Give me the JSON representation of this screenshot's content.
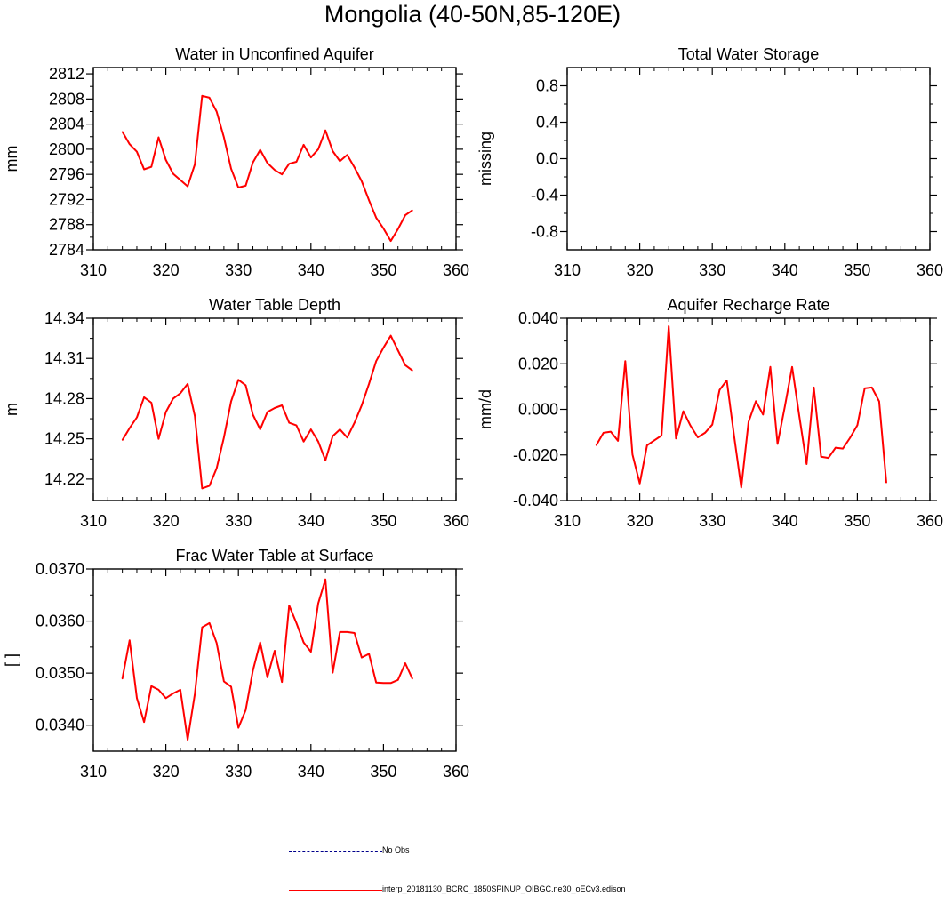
{
  "title": "Mongolia (40-50N,85-120E)",
  "legend": {
    "no_obs_label": "No Obs",
    "model_label": "interp_20181130_BCRC_1850SPINUP_OIBGC.ne30_oECv3.edison",
    "no_obs_color": "#00008b",
    "model_color": "#ff0000"
  },
  "chart_data": [
    {
      "type": "line",
      "title": "Water in Unconfined Aquifer",
      "xlabel": "",
      "ylabel": "mm",
      "xlim": [
        310,
        360
      ],
      "ylim": [
        2784,
        2813
      ],
      "xticks": [
        310,
        320,
        330,
        340,
        350,
        360
      ],
      "yticks": [
        2784,
        2788,
        2792,
        2796,
        2800,
        2804,
        2808,
        2812
      ],
      "ytick_labels": [
        "2784",
        "2788",
        "2792",
        "2796",
        "2800",
        "2804",
        "2808",
        "2812"
      ],
      "series": [
        {
          "name": "interp_20181130_BCRC_1850SPINUP_OIBGC.ne30_oECv3.edison",
          "color": "#ff0000",
          "x": [
            314,
            315,
            316,
            317,
            318,
            319,
            320,
            321,
            322,
            323,
            324,
            325,
            326,
            327,
            328,
            329,
            330,
            331,
            332,
            333,
            334,
            335,
            336,
            337,
            338,
            339,
            340,
            341,
            342,
            343,
            344,
            345,
            346,
            347,
            348,
            349,
            350,
            351,
            352,
            353,
            354
          ],
          "values": [
            2802.8,
            2800.8,
            2799.6,
            2796.8,
            2797.2,
            2801.9,
            2798.3,
            2796.1,
            2795.1,
            2794.1,
            2797.6,
            2808.5,
            2808.2,
            2806.0,
            2801.9,
            2796.9,
            2793.9,
            2794.2,
            2797.9,
            2799.9,
            2797.8,
            2796.7,
            2796.0,
            2797.7,
            2798.0,
            2800.7,
            2798.7,
            2800.0,
            2803.0,
            2799.7,
            2798.1,
            2799.1,
            2797.1,
            2794.9,
            2791.9,
            2789.1,
            2787.4,
            2785.4,
            2787.3,
            2789.5,
            2790.3
          ]
        }
      ]
    },
    {
      "type": "line",
      "title": "Total Water Storage",
      "xlabel": "",
      "ylabel": "missing",
      "xlim": [
        310,
        360
      ],
      "ylim": [
        -1.0,
        1.0
      ],
      "xticks": [
        310,
        320,
        330,
        340,
        350,
        360
      ],
      "yticks": [
        -0.8,
        -0.4,
        0.0,
        0.4,
        0.8
      ],
      "ytick_labels": [
        "-0.8",
        "-0.4",
        "0.0",
        "0.4",
        "0.8"
      ],
      "series": []
    },
    {
      "type": "line",
      "title": "Water Table Depth",
      "xlabel": "",
      "ylabel": "m",
      "xlim": [
        310,
        360
      ],
      "ylim": [
        14.204,
        14.34
      ],
      "xticks": [
        310,
        320,
        330,
        340,
        350,
        360
      ],
      "yticks": [
        14.22,
        14.25,
        14.28,
        14.31,
        14.34
      ],
      "ytick_labels": [
        "14.22",
        "14.25",
        "14.28",
        "14.31",
        "14.34"
      ],
      "series": [
        {
          "name": "interp_20181130_BCRC_1850SPINUP_OIBGC.ne30_oECv3.edison",
          "color": "#ff0000",
          "x": [
            314,
            315,
            316,
            317,
            318,
            319,
            320,
            321,
            322,
            323,
            324,
            325,
            326,
            327,
            328,
            329,
            330,
            331,
            332,
            333,
            334,
            335,
            336,
            337,
            338,
            339,
            340,
            341,
            342,
            343,
            344,
            345,
            346,
            347,
            348,
            349,
            350,
            351,
            352,
            353,
            354
          ],
          "values": [
            14.249,
            14.258,
            14.266,
            14.281,
            14.277,
            14.25,
            14.27,
            14.28,
            14.284,
            14.291,
            14.267,
            14.213,
            14.215,
            14.228,
            14.251,
            14.278,
            14.294,
            14.29,
            14.268,
            14.257,
            14.27,
            14.273,
            14.275,
            14.262,
            14.26,
            14.248,
            14.257,
            14.248,
            14.234,
            14.252,
            14.257,
            14.251,
            14.262,
            14.275,
            14.291,
            14.308,
            14.318,
            14.327,
            14.316,
            14.305,
            14.301
          ]
        }
      ]
    },
    {
      "type": "line",
      "title": "Aquifer Recharge Rate",
      "xlabel": "",
      "ylabel": "mm/d",
      "xlim": [
        310,
        360
      ],
      "ylim": [
        -0.04,
        0.04
      ],
      "xticks": [
        310,
        320,
        330,
        340,
        350,
        360
      ],
      "yticks": [
        -0.04,
        -0.02,
        0.0,
        0.02,
        0.04
      ],
      "ytick_labels": [
        "-0.040",
        "-0.020",
        "0.000",
        "0.020",
        "0.040"
      ],
      "series": [
        {
          "name": "interp_20181130_BCRC_1850SPINUP_OIBGC.ne30_oECv3.edison",
          "color": "#ff0000",
          "x": [
            314,
            315,
            316,
            317,
            318,
            319,
            320,
            321,
            322,
            323,
            324,
            325,
            326,
            327,
            328,
            329,
            330,
            331,
            332,
            333,
            334,
            335,
            336,
            337,
            338,
            339,
            340,
            341,
            342,
            343,
            344,
            345,
            346,
            347,
            348,
            349,
            350,
            351,
            352,
            353,
            354
          ],
          "values": [
            -0.0158,
            -0.0103,
            -0.0098,
            -0.0138,
            0.0212,
            -0.0198,
            -0.0325,
            -0.0158,
            -0.0136,
            -0.0115,
            0.0365,
            -0.0128,
            -0.0008,
            -0.0072,
            -0.0123,
            -0.0103,
            -0.0067,
            0.0085,
            0.0127,
            -0.0116,
            -0.0343,
            -0.0055,
            0.0036,
            -0.0023,
            0.0186,
            -0.0152,
            0.0012,
            0.0186,
            -0.003,
            -0.024,
            0.0096,
            -0.0208,
            -0.0213,
            -0.0168,
            -0.0172,
            -0.0125,
            -0.007,
            0.0092,
            0.0096,
            0.0035,
            -0.0322
          ]
        }
      ]
    },
    {
      "type": "line",
      "title": "Frac Water Table at Surface",
      "xlabel": "",
      "ylabel": "[ ]",
      "xlim": [
        310,
        360
      ],
      "ylim": [
        0.0335,
        0.037
      ],
      "xticks": [
        310,
        320,
        330,
        340,
        350,
        360
      ],
      "yticks": [
        0.034,
        0.035,
        0.036,
        0.037
      ],
      "ytick_labels": [
        "0.0340",
        "0.0350",
        "0.0360",
        "0.0370"
      ],
      "series": [
        {
          "name": "interp_20181130_BCRC_1850SPINUP_OIBGC.ne30_oECv3.edison",
          "color": "#ff0000",
          "x": [
            314,
            315,
            316,
            317,
            318,
            319,
            320,
            321,
            322,
            323,
            324,
            325,
            326,
            327,
            328,
            329,
            330,
            331,
            332,
            333,
            334,
            335,
            336,
            337,
            338,
            339,
            340,
            341,
            342,
            343,
            344,
            345,
            346,
            347,
            348,
            349,
            350,
            351,
            352,
            353,
            354
          ],
          "values": [
            0.03489,
            0.03563,
            0.03452,
            0.03406,
            0.03475,
            0.03468,
            0.03452,
            0.03461,
            0.03468,
            0.03372,
            0.0346,
            0.03588,
            0.03596,
            0.03558,
            0.03484,
            0.03474,
            0.03395,
            0.03429,
            0.03505,
            0.03559,
            0.03492,
            0.03543,
            0.03483,
            0.0363,
            0.03596,
            0.03559,
            0.03541,
            0.03634,
            0.0368,
            0.03501,
            0.03579,
            0.03579,
            0.03577,
            0.0353,
            0.03537,
            0.03482,
            0.03481,
            0.03481,
            0.03487,
            0.03519,
            0.03489
          ]
        }
      ]
    }
  ]
}
